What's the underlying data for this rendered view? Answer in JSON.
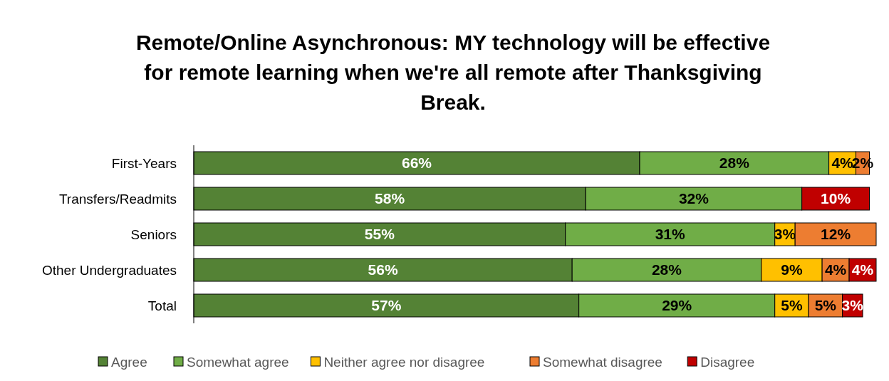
{
  "chart_data": {
    "type": "bar",
    "orientation": "horizontal",
    "stacked": true,
    "legend": "bottom",
    "title": "Remote/Online Asynchronous: MY technology will be effective for remote learning when we're all remote after Thanksgiving Break.",
    "categories": [
      "First-Years",
      "Transfers/Readmits",
      "Seniors",
      "Other Undergraduates",
      "Total"
    ],
    "series": [
      {
        "name": "Agree",
        "color": "#548235",
        "values": [
          66,
          58,
          55,
          56,
          57
        ],
        "value_labels": [
          "66%",
          "58%",
          "55%",
          "56%",
          "57%"
        ]
      },
      {
        "name": "Somewhat agree",
        "color": "#70ad47",
        "values": [
          28,
          32,
          31,
          28,
          29
        ],
        "value_labels": [
          "28%",
          "32%",
          "31%",
          "28%",
          "29%"
        ]
      },
      {
        "name": "Neither agree nor disagree",
        "color": "#ffc000",
        "values": [
          4,
          null,
          3,
          9,
          5
        ],
        "value_labels": [
          "4%",
          null,
          "3%",
          "9%",
          "5%"
        ]
      },
      {
        "name": "Somewhat disagree",
        "color": "#ed7d31",
        "values": [
          2,
          null,
          12,
          4,
          5
        ],
        "value_labels": [
          "2%",
          null,
          "12%",
          "4%",
          "5%"
        ]
      },
      {
        "name": "Disagree",
        "color": "#c00000",
        "values": [
          null,
          10,
          null,
          4,
          3
        ],
        "value_labels": [
          null,
          "10%",
          null,
          "4%",
          "3%"
        ]
      }
    ]
  }
}
